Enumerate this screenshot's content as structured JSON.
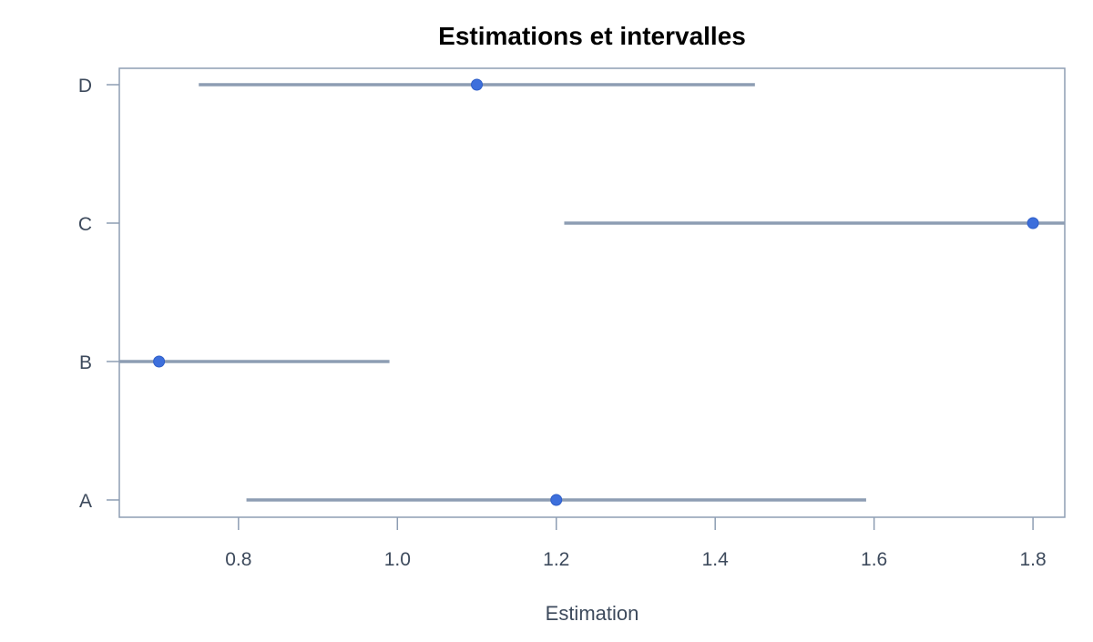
{
  "chart_data": {
    "type": "scatter",
    "title": "Estimations et intervalles",
    "xlabel": "Estimation",
    "ylabel": "",
    "categories": [
      "A",
      "B",
      "C",
      "D"
    ],
    "estimates": [
      1.2,
      0.7,
      1.8,
      1.1
    ],
    "lower": [
      0.81,
      0.65,
      1.21,
      0.75
    ],
    "upper": [
      1.59,
      0.99,
      1.84,
      1.45
    ],
    "xlim": [
      0.65,
      1.84
    ],
    "xticks": [
      0.8,
      1.0,
      1.2,
      1.4,
      1.6,
      1.8
    ],
    "xtick_labels": [
      "0.8",
      "1.0",
      "1.2",
      "1.4",
      "1.6",
      "1.8"
    ],
    "grid": false,
    "legend": "none",
    "colors": {
      "point": "#3d6fdc",
      "interval": "#8d9db3",
      "axis": "#8d9db3",
      "text": "#3d4a5c"
    }
  }
}
